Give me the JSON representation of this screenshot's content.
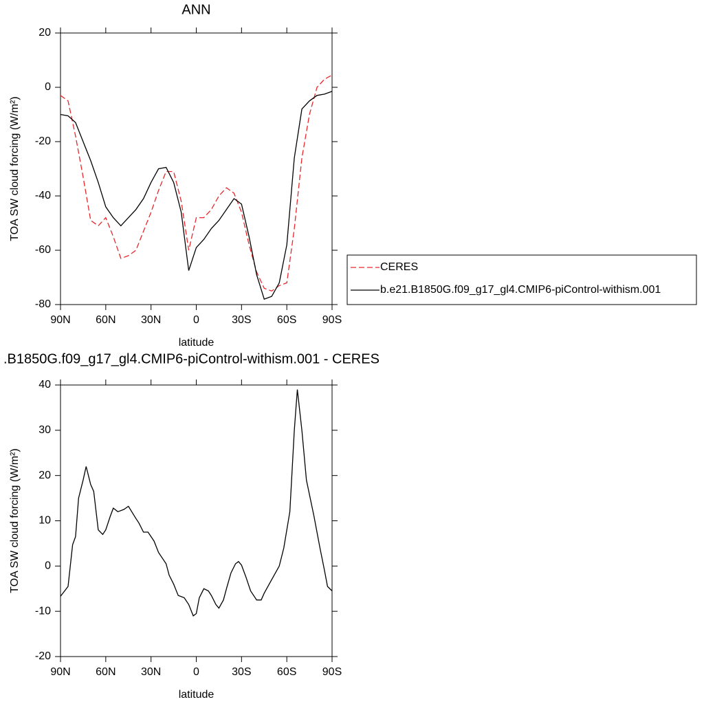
{
  "chart_data": [
    {
      "type": "line",
      "title": "ANN",
      "xlabel": "latitude",
      "ylabel": "TOA SW cloud forcing (W/m²)",
      "x": [
        90,
        85,
        80,
        75,
        70,
        65,
        60,
        55,
        50,
        45,
        40,
        35,
        30,
        25,
        20,
        15,
        10,
        5,
        0,
        -5,
        -10,
        -15,
        -20,
        -25,
        -30,
        -35,
        -40,
        -45,
        -50,
        -55,
        -60,
        -65,
        -70,
        -75,
        -80,
        -85,
        -90
      ],
      "series": [
        {
          "name": "CERES",
          "color": "#e8262a",
          "linestyle": "dashed",
          "values": [
            -3,
            -5,
            -18,
            -33,
            -49,
            -51,
            -48,
            -55,
            -63,
            -62,
            -60,
            -53,
            -46,
            -38,
            -31,
            -31,
            -42,
            -60,
            -48,
            -48,
            -45,
            -40,
            -37,
            -39,
            -46,
            -58,
            -68,
            -74,
            -75,
            -73,
            -72,
            -52,
            -26,
            -10,
            0,
            3,
            4.5
          ]
        },
        {
          "name": "b.e21.B1850G.f09_g17_gl4.CMIP6-piControl-withism.001",
          "color": "#000000",
          "linestyle": "solid",
          "values": [
            -10,
            -10.5,
            -13,
            -20,
            -27,
            -35,
            -44,
            -48,
            -51,
            -48,
            -45,
            -41,
            -35,
            -30,
            -29.5,
            -35,
            -46,
            -67.5,
            -59,
            -56,
            -52,
            -49,
            -45,
            -41,
            -43,
            -55,
            -69,
            -78,
            -77,
            -72,
            -58,
            -26,
            -8,
            -5,
            -3,
            -2.5,
            -1.5
          ]
        }
      ],
      "xlim": [
        90,
        -90
      ],
      "xticks": [
        {
          "value": 90,
          "label": "90N"
        },
        {
          "value": 60,
          "label": "60N"
        },
        {
          "value": 30,
          "label": "30N"
        },
        0,
        {
          "value": -30,
          "label": "30S"
        },
        {
          "value": -60,
          "label": "60S"
        },
        {
          "value": -90,
          "label": "90S"
        }
      ],
      "ylim": [
        -80,
        20
      ],
      "yticks": [
        -80,
        -60,
        -40,
        -20,
        0,
        20
      ],
      "legend": "right"
    },
    {
      "type": "line",
      "title": ".B1850G.f09_g17_gl4.CMIP6-piControl-withism.001 - CERES",
      "xlabel": "latitude",
      "ylabel": "TOA SW cloud forcing (W/m²)",
      "x": [
        90,
        85,
        82,
        80,
        78,
        75,
        73,
        70,
        68,
        65,
        62,
        60,
        57,
        55,
        52,
        48,
        45,
        40,
        38,
        35,
        32,
        28,
        25,
        20,
        18,
        15,
        12,
        8,
        5,
        2,
        0,
        -2,
        -5,
        -8,
        -10,
        -13,
        -15,
        -18,
        -20,
        -23,
        -26,
        -28,
        -30,
        -33,
        -36,
        -40,
        -43,
        -45,
        -50,
        -55,
        -58,
        -62,
        -65,
        -67,
        -70,
        -73,
        -78,
        -82,
        -85,
        -87,
        -90
      ],
      "series": [
        {
          "color": "#000000",
          "linestyle": "solid",
          "values": [
            -6.7,
            -4.5,
            4.7,
            6.5,
            15,
            19,
            22,
            18,
            16.5,
            8,
            7,
            8,
            11,
            12.8,
            12,
            12.5,
            13.2,
            10.5,
            9.5,
            7.5,
            7.5,
            5.5,
            3,
            0.5,
            -2,
            -4,
            -6.5,
            -7,
            -8.5,
            -11,
            -10.5,
            -7,
            -5,
            -5.5,
            -6.5,
            -8.5,
            -9.3,
            -7.5,
            -5,
            -1.5,
            0.5,
            1,
            0.2,
            -2.5,
            -5.5,
            -7.5,
            -7.5,
            -6,
            -3,
            0,
            4,
            12,
            30,
            39,
            30,
            19,
            11,
            4,
            -1,
            -4.5,
            -5.5
          ]
        }
      ],
      "xlim": [
        90,
        -90
      ],
      "xticks": [
        {
          "value": 90,
          "label": "90N"
        },
        {
          "value": 60,
          "label": "60N"
        },
        {
          "value": 30,
          "label": "30N"
        },
        0,
        {
          "value": -30,
          "label": "30S"
        },
        {
          "value": -60,
          "label": "60S"
        },
        {
          "value": -90,
          "label": "90S"
        }
      ],
      "ylim": [
        -20,
        40
      ],
      "yticks": [
        -20,
        -10,
        0,
        10,
        20,
        30,
        40
      ]
    }
  ]
}
